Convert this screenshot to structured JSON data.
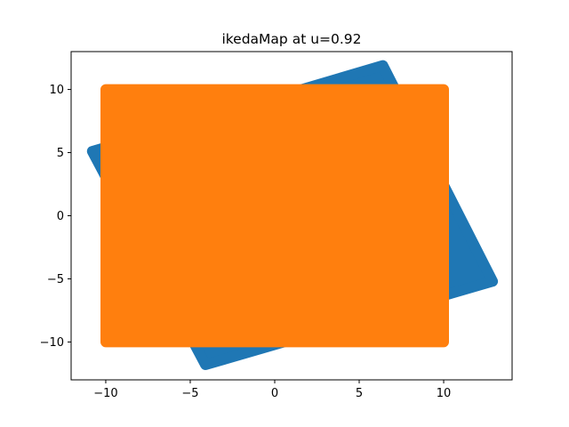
{
  "chart_data": {
    "type": "scatter",
    "title": "ikedaMap at u=0.92",
    "xlabel": "",
    "ylabel": "",
    "xlim": [
      -12.05,
      14.05
    ],
    "ylim": [
      -13.0,
      13.0
    ],
    "xticks": [
      -10,
      -5,
      0,
      5,
      10
    ],
    "yticks": [
      -10,
      -5,
      0,
      5,
      10
    ],
    "tick_labels_x": [
      "−10",
      "−5",
      "0",
      "5",
      "10"
    ],
    "tick_labels_y": [
      "−10",
      "−5",
      "0",
      "5",
      "10"
    ],
    "grid": false,
    "series": [
      {
        "color": "#1f77b4",
        "shape": "rotated-square",
        "corners": [
          [
            6.4,
            11.9
          ],
          [
            12.9,
            -5.2
          ],
          [
            -4.1,
            -11.8
          ],
          [
            -10.8,
            5.1
          ]
        ]
      },
      {
        "color": "#ff7f0e",
        "shape": "square",
        "corners": [
          [
            -10,
            10
          ],
          [
            10,
            10
          ],
          [
            10,
            -10
          ],
          [
            -10,
            -10
          ]
        ]
      }
    ]
  }
}
